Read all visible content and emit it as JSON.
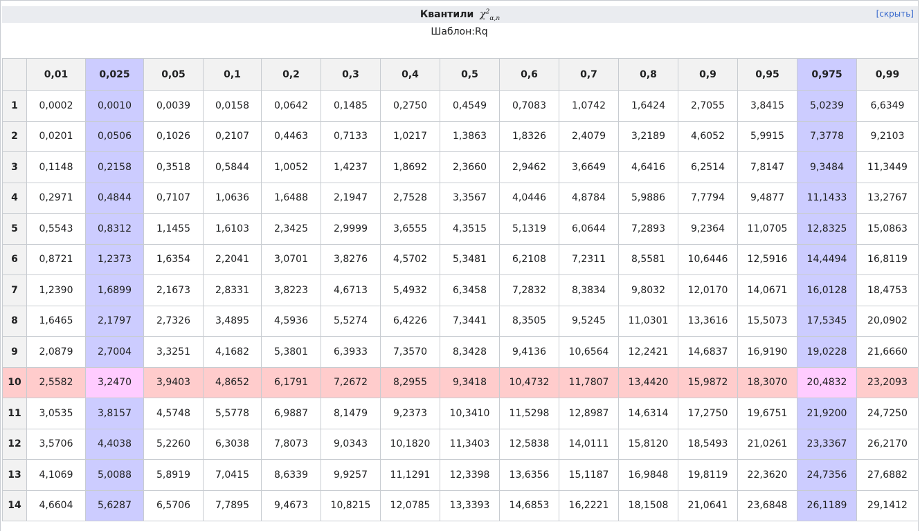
{
  "header": {
    "title": "Квантили",
    "math_base": "χ",
    "math_sup": "2",
    "math_sub": "α,n",
    "hide_label": "[скрыть]",
    "template_label": "Шаблон:Rq"
  },
  "table": {
    "highlight_color_column": "#ccccff",
    "highlight_color_row": "#ffcccc",
    "highlight_color_cross": "#ffccff",
    "highlight_column_index": [
      1,
      13
    ],
    "highlight_row_label": "10",
    "columns": [
      "0,01",
      "0,025",
      "0,05",
      "0,1",
      "0,2",
      "0,3",
      "0,4",
      "0,5",
      "0,6",
      "0,7",
      "0,8",
      "0,9",
      "0,95",
      "0,975",
      "0,99"
    ],
    "rows": [
      {
        "n": "1",
        "values": [
          "0,0002",
          "0,0010",
          "0,0039",
          "0,0158",
          "0,0642",
          "0,1485",
          "0,2750",
          "0,4549",
          "0,7083",
          "1,0742",
          "1,6424",
          "2,7055",
          "3,8415",
          "5,0239",
          "6,6349"
        ]
      },
      {
        "n": "2",
        "values": [
          "0,0201",
          "0,0506",
          "0,1026",
          "0,2107",
          "0,4463",
          "0,7133",
          "1,0217",
          "1,3863",
          "1,8326",
          "2,4079",
          "3,2189",
          "4,6052",
          "5,9915",
          "7,3778",
          "9,2103"
        ]
      },
      {
        "n": "3",
        "values": [
          "0,1148",
          "0,2158",
          "0,3518",
          "0,5844",
          "1,0052",
          "1,4237",
          "1,8692",
          "2,3660",
          "2,9462",
          "3,6649",
          "4,6416",
          "6,2514",
          "7,8147",
          "9,3484",
          "11,3449"
        ]
      },
      {
        "n": "4",
        "values": [
          "0,2971",
          "0,4844",
          "0,7107",
          "1,0636",
          "1,6488",
          "2,1947",
          "2,7528",
          "3,3567",
          "4,0446",
          "4,8784",
          "5,9886",
          "7,7794",
          "9,4877",
          "11,1433",
          "13,2767"
        ]
      },
      {
        "n": "5",
        "values": [
          "0,5543",
          "0,8312",
          "1,1455",
          "1,6103",
          "2,3425",
          "2,9999",
          "3,6555",
          "4,3515",
          "5,1319",
          "6,0644",
          "7,2893",
          "9,2364",
          "11,0705",
          "12,8325",
          "15,0863"
        ]
      },
      {
        "n": "6",
        "values": [
          "0,8721",
          "1,2373",
          "1,6354",
          "2,2041",
          "3,0701",
          "3,8276",
          "4,5702",
          "5,3481",
          "6,2108",
          "7,2311",
          "8,5581",
          "10,6446",
          "12,5916",
          "14,4494",
          "16,8119"
        ]
      },
      {
        "n": "7",
        "values": [
          "1,2390",
          "1,6899",
          "2,1673",
          "2,8331",
          "3,8223",
          "4,6713",
          "5,4932",
          "6,3458",
          "7,2832",
          "8,3834",
          "9,8032",
          "12,0170",
          "14,0671",
          "16,0128",
          "18,4753"
        ]
      },
      {
        "n": "8",
        "values": [
          "1,6465",
          "2,1797",
          "2,7326",
          "3,4895",
          "4,5936",
          "5,5274",
          "6,4226",
          "7,3441",
          "8,3505",
          "9,5245",
          "11,0301",
          "13,3616",
          "15,5073",
          "17,5345",
          "20,0902"
        ]
      },
      {
        "n": "9",
        "values": [
          "2,0879",
          "2,7004",
          "3,3251",
          "4,1682",
          "5,3801",
          "6,3933",
          "7,3570",
          "8,3428",
          "9,4136",
          "10,6564",
          "12,2421",
          "14,6837",
          "16,9190",
          "19,0228",
          "21,6660"
        ]
      },
      {
        "n": "10",
        "values": [
          "2,5582",
          "3,2470",
          "3,9403",
          "4,8652",
          "6,1791",
          "7,2672",
          "8,2955",
          "9,3418",
          "10,4732",
          "11,7807",
          "13,4420",
          "15,9872",
          "18,3070",
          "20,4832",
          "23,2093"
        ]
      },
      {
        "n": "11",
        "values": [
          "3,0535",
          "3,8157",
          "4,5748",
          "5,5778",
          "6,9887",
          "8,1479",
          "9,2373",
          "10,3410",
          "11,5298",
          "12,8987",
          "14,6314",
          "17,2750",
          "19,6751",
          "21,9200",
          "24,7250"
        ]
      },
      {
        "n": "12",
        "values": [
          "3,5706",
          "4,4038",
          "5,2260",
          "6,3038",
          "7,8073",
          "9,0343",
          "10,1820",
          "11,3403",
          "12,5838",
          "14,0111",
          "15,8120",
          "18,5493",
          "21,0261",
          "23,3367",
          "26,2170"
        ]
      },
      {
        "n": "13",
        "values": [
          "4,1069",
          "5,0088",
          "5,8919",
          "7,0415",
          "8,6339",
          "9,9257",
          "11,1291",
          "12,3398",
          "13,6356",
          "15,1187",
          "16,9848",
          "19,8119",
          "22,3620",
          "24,7356",
          "27,6882"
        ]
      },
      {
        "n": "14",
        "values": [
          "4,6604",
          "5,6287",
          "6,5706",
          "7,7895",
          "9,4673",
          "10,8215",
          "12,0785",
          "13,3393",
          "14,6853",
          "16,2221",
          "18,1508",
          "21,0641",
          "23,6848",
          "26,1189",
          "29,1412"
        ]
      }
    ]
  }
}
